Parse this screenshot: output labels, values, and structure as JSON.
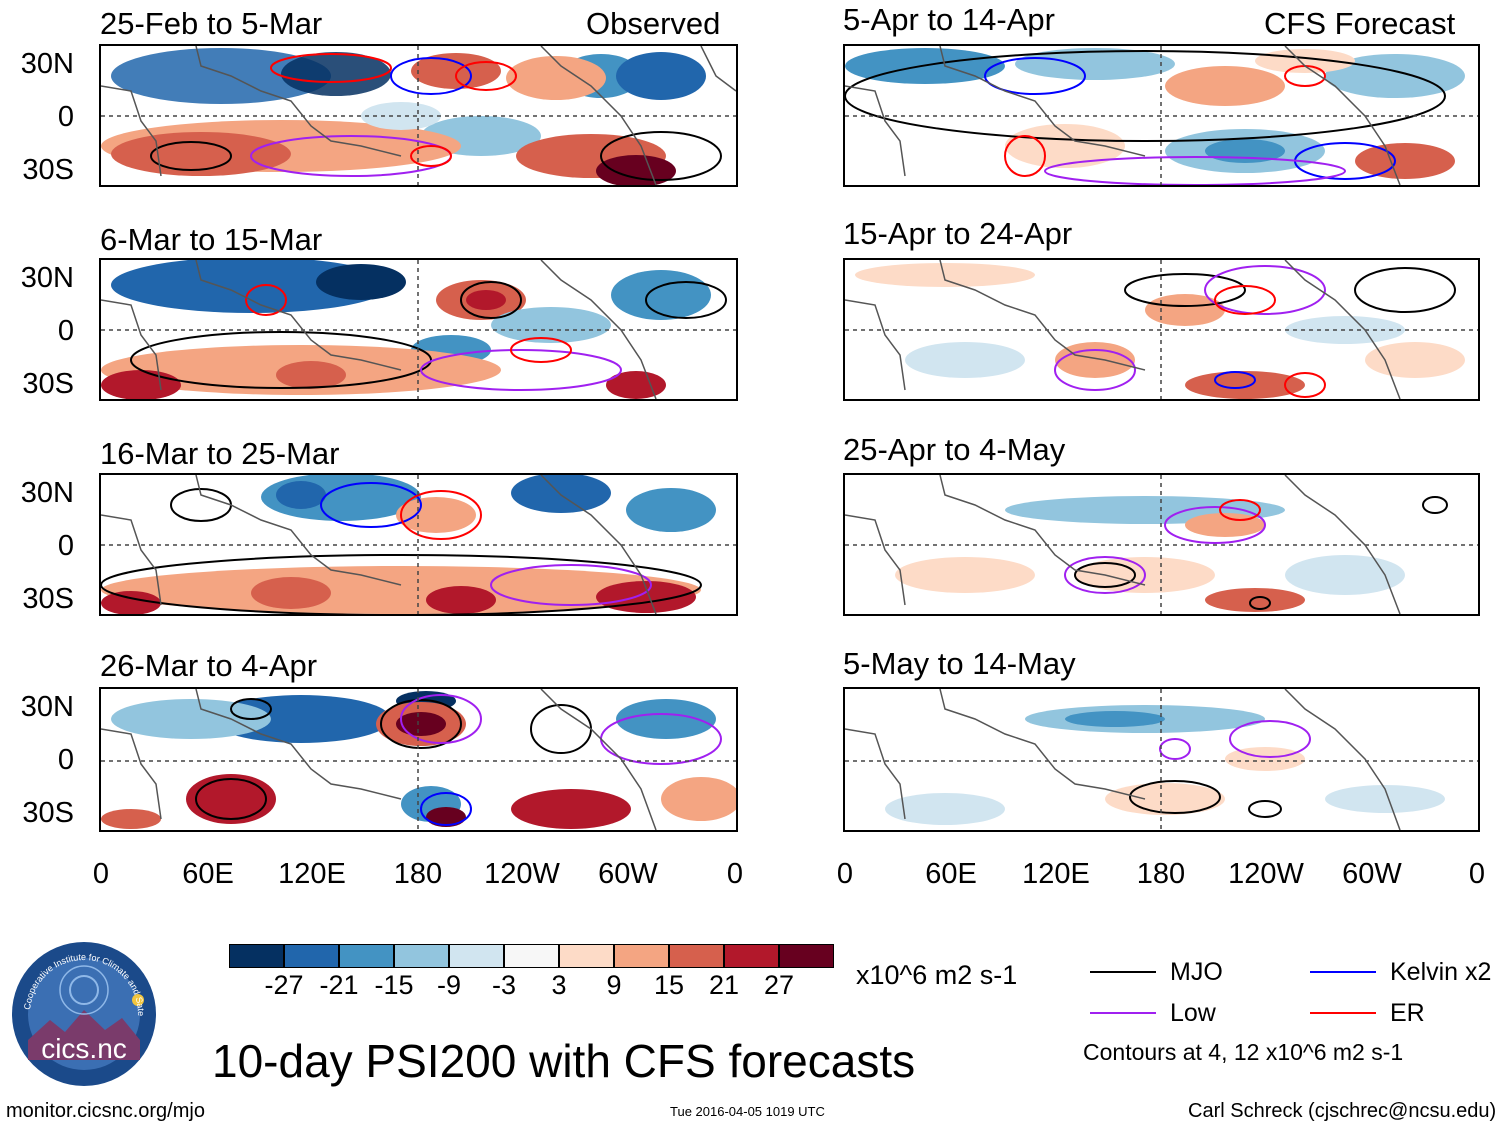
{
  "panels_left": [
    {
      "title": "25-Feb to 5-Mar",
      "tag": "Observed"
    },
    {
      "title": "6-Mar to 15-Mar",
      "tag": ""
    },
    {
      "title": "16-Mar to 25-Mar",
      "tag": ""
    },
    {
      "title": "26-Mar to 4-Apr",
      "tag": ""
    }
  ],
  "panels_right": [
    {
      "title": "5-Apr to 14-Apr",
      "tag": "CFS Forecast"
    },
    {
      "title": "15-Apr to 24-Apr",
      "tag": ""
    },
    {
      "title": "25-Apr to 4-May",
      "tag": ""
    },
    {
      "title": "5-May to 14-May",
      "tag": ""
    }
  ],
  "y_labels": [
    "30N",
    "0",
    "30S"
  ],
  "x_labels": [
    "0",
    "60E",
    "120E",
    "180",
    "120W",
    "60W",
    "0"
  ],
  "colorbar": {
    "colors": [
      "#053061",
      "#2166ac",
      "#4393c3",
      "#92c5de",
      "#d1e5f0",
      "#f7f7f7",
      "#fddbc7",
      "#f4a582",
      "#d6604d",
      "#b2182b",
      "#67001f"
    ],
    "labels": [
      "-27",
      "-21",
      "-15",
      "-9",
      "-3",
      "3",
      "9",
      "15",
      "21",
      "27"
    ],
    "units": "x10^6 m2 s-1"
  },
  "legend": {
    "items": [
      {
        "name": "MJO",
        "color": "#000000"
      },
      {
        "name": "Kelvin x2",
        "color": "#0000ff"
      },
      {
        "name": "Low",
        "color": "#a020f0"
      },
      {
        "name": "ER",
        "color": "#ff0000"
      }
    ],
    "note": "Contours at 4, 12 x10^6 m2 s-1"
  },
  "logo_text": "cics.nc",
  "logo_ring_text": "Cooperative Institute for Climate and Satellites",
  "main_title": "10-day PSI200 with CFS forecasts",
  "footer": {
    "left": "monitor.cicsnc.org/mjo",
    "center": "Tue 2016-04-05 1019 UTC",
    "right": "Carl Schreck (cjschrec@ncsu.edu)"
  }
}
